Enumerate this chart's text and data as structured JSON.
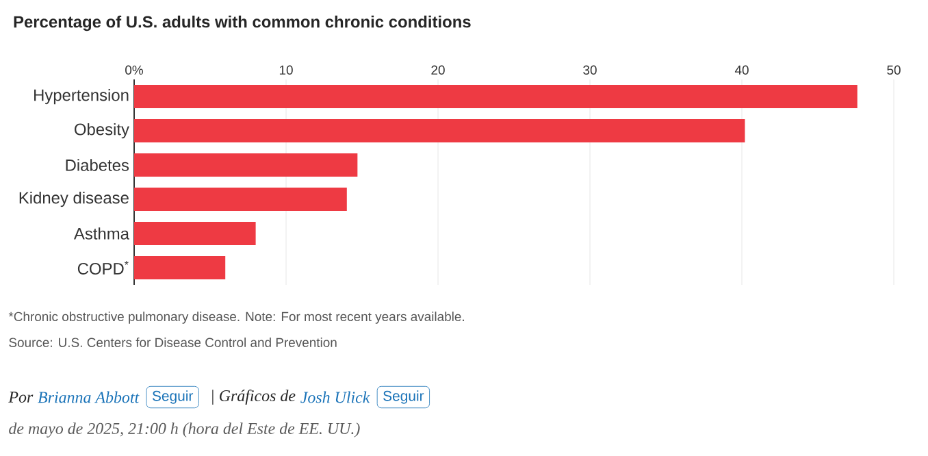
{
  "chart_data": {
    "type": "bar",
    "orientation": "horizontal",
    "title": "Percentage of U.S. adults with common chronic conditions",
    "categories": [
      "Hypertension",
      "Obesity",
      "Diabetes",
      "Kidney disease",
      "Asthma",
      "COPD$^{*}$"
    ],
    "values": [
      47.6,
      40.2,
      14.7,
      14.0,
      8.0,
      6.0
    ],
    "color": "#ee3a43",
    "xlim": [
      0,
      50
    ],
    "xticks": [
      {
        "value": 0,
        "label": "0%"
      },
      10,
      20,
      30,
      40,
      50
    ],
    "grid": "x",
    "annotations": [
      "*Chronic obstructive pulmonary disease. Note: For most recent years available.",
      "Source: U.S. Centers for Disease Control and Prevention",
      "Por",
      "Brianna Abbott",
      "Seguir",
      "| Gráficos de",
      "Josh Ulick",
      "Seguir",
      "de mayo de 2025, 21:00 h (hora del Este de EE. UU.)"
    ]
  }
}
